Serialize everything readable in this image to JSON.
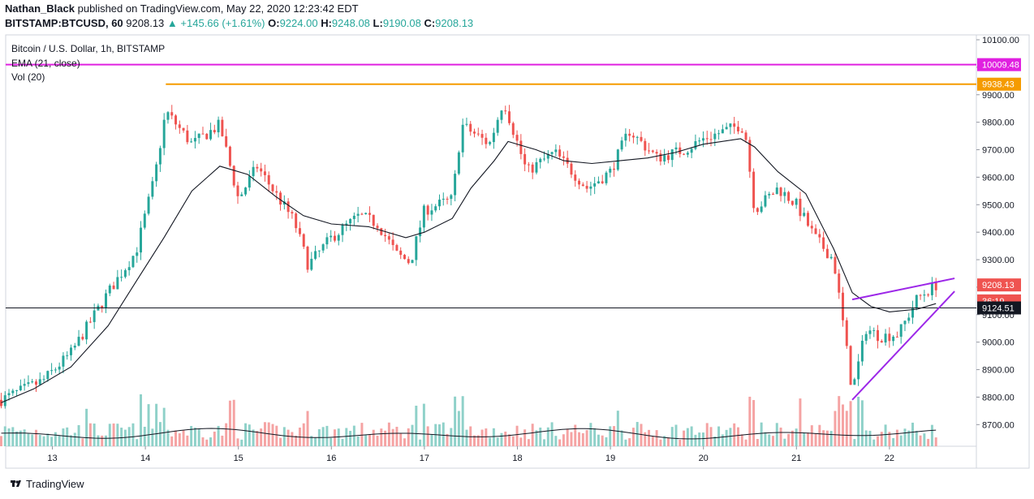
{
  "header": {
    "author": "Nathan_Black",
    "published": "published on TradingView.com, May 22, 2020 12:23:42 EDT",
    "symbol": "BITSTAMP:BTCUSD, 60",
    "last": "9208.13",
    "change": "+145.66 (+1.61%)",
    "o_label": "O:",
    "o": "9224.00",
    "h_label": "H:",
    "h": "9248.08",
    "l_label": "L:",
    "l": "9190.08",
    "c_label": "C:",
    "c": "9208.13"
  },
  "legend": {
    "title": "Bitcoin / U.S. Dollar, 1h, BITSTAMP",
    "ema": "EMA (21, close)",
    "vol": "Vol (20)"
  },
  "footer": {
    "brand": "TradingView"
  },
  "colors": {
    "up": "#26a69a",
    "down": "#ef5350",
    "up_vol": "#8fd1c9",
    "down_vol": "#f5a3a3",
    "magenta": "#e020e0",
    "orange": "#f59b00",
    "purple": "#9c27e8",
    "ema": "#131722"
  },
  "chart_data": {
    "type": "candlestick",
    "x_tick_labels": [
      "13",
      "14",
      "15",
      "16",
      "17",
      "18",
      "19",
      "20",
      "21",
      "22"
    ],
    "y_tick_labels": [
      "10100.00",
      "10000.00",
      "9900.00",
      "9800.00",
      "9700.00",
      "9600.00",
      "9500.00",
      "9400.00",
      "9300.00",
      "9200.00",
      "9100.00",
      "9000.00",
      "8900.00",
      "8800.00",
      "8700.00"
    ],
    "ylim": [
      8620,
      10170
    ],
    "price_labels": [
      {
        "value": 10009.48,
        "text": "10009.48",
        "color": "#e020e0"
      },
      {
        "value": 9938.43,
        "text": "9938.43",
        "color": "#f59b00"
      },
      {
        "value": 9208.13,
        "text": "9208.13",
        "color": "#ef5350"
      },
      {
        "value": 9150,
        "text": "36:19",
        "color": "#ef5350"
      },
      {
        "value": 9124.51,
        "text": "9124.51",
        "color": "#131722"
      }
    ],
    "horizontal_lines": [
      {
        "name": "magenta-resistance",
        "value": 10009.48,
        "x_start_day": 12.4
      },
      {
        "name": "orange-resistance",
        "value": 9938.43,
        "x_start_day": 14.22
      },
      {
        "name": "crosshair",
        "value": 9124.51,
        "x_start_day": 12.4
      }
    ],
    "trendlines": [
      {
        "name": "wedge-upper",
        "from": [
          21.6,
          9155
        ],
        "to": [
          22.7,
          9232
        ]
      },
      {
        "name": "wedge-lower",
        "from": [
          21.6,
          8790
        ],
        "to": [
          22.7,
          9185
        ]
      }
    ],
    "anchors": [
      [
        12.45,
        8790
      ],
      [
        12.9,
        8860
      ],
      [
        13.2,
        8960
      ],
      [
        13.6,
        9180
      ],
      [
        13.9,
        9330
      ],
      [
        14.1,
        9600
      ],
      [
        14.22,
        9840
      ],
      [
        14.5,
        9720
      ],
      [
        14.8,
        9790
      ],
      [
        15.0,
        9520
      ],
      [
        15.2,
        9640
      ],
      [
        15.6,
        9440
      ],
      [
        15.75,
        9280
      ],
      [
        16.0,
        9380
      ],
      [
        16.3,
        9460
      ],
      [
        16.5,
        9430
      ],
      [
        16.7,
        9320
      ],
      [
        16.85,
        9290
      ],
      [
        17.0,
        9480
      ],
      [
        17.3,
        9520
      ],
      [
        17.4,
        9790
      ],
      [
        17.7,
        9720
      ],
      [
        17.85,
        9880
      ],
      [
        18.1,
        9620
      ],
      [
        18.4,
        9690
      ],
      [
        18.75,
        9560
      ],
      [
        19.0,
        9620
      ],
      [
        19.2,
        9770
      ],
      [
        19.5,
        9670
      ],
      [
        19.8,
        9700
      ],
      [
        20.0,
        9740
      ],
      [
        20.4,
        9790
      ],
      [
        20.45,
        9760
      ],
      [
        20.55,
        9480
      ],
      [
        20.8,
        9560
      ],
      [
        21.0,
        9500
      ],
      [
        21.2,
        9380
      ],
      [
        21.4,
        9300
      ],
      [
        21.5,
        9070
      ],
      [
        21.6,
        8820
      ],
      [
        21.75,
        9050
      ],
      [
        21.9,
        9020
      ],
      [
        22.1,
        9030
      ],
      [
        22.3,
        9160
      ],
      [
        22.5,
        9208
      ]
    ],
    "ema_anchors": [
      [
        12.45,
        8780
      ],
      [
        12.8,
        8830
      ],
      [
        13.2,
        8910
      ],
      [
        13.6,
        9060
      ],
      [
        13.9,
        9220
      ],
      [
        14.2,
        9380
      ],
      [
        14.5,
        9550
      ],
      [
        14.8,
        9640
      ],
      [
        15.1,
        9610
      ],
      [
        15.4,
        9530
      ],
      [
        15.7,
        9460
      ],
      [
        16.0,
        9430
      ],
      [
        16.4,
        9420
      ],
      [
        16.8,
        9380
      ],
      [
        17.0,
        9400
      ],
      [
        17.3,
        9450
      ],
      [
        17.5,
        9560
      ],
      [
        17.75,
        9660
      ],
      [
        17.9,
        9730
      ],
      [
        18.2,
        9700
      ],
      [
        18.5,
        9660
      ],
      [
        18.8,
        9650
      ],
      [
        19.1,
        9660
      ],
      [
        19.4,
        9670
      ],
      [
        19.7,
        9690
      ],
      [
        20.0,
        9720
      ],
      [
        20.4,
        9740
      ],
      [
        20.55,
        9710
      ],
      [
        20.8,
        9620
      ],
      [
        21.1,
        9540
      ],
      [
        21.4,
        9340
      ],
      [
        21.6,
        9180
      ],
      [
        21.8,
        9130
      ],
      [
        22.0,
        9110
      ],
      [
        22.3,
        9120
      ],
      [
        22.5,
        9140
      ]
    ],
    "volume_avg": 0.3
  }
}
